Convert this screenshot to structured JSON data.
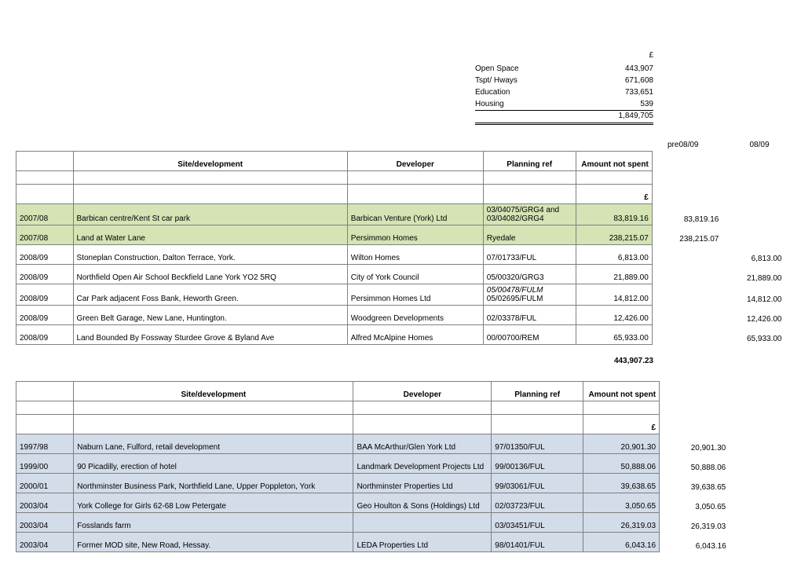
{
  "summary": {
    "currency": "£",
    "rows": [
      {
        "label": "Open Space",
        "value": "443,907"
      },
      {
        "label": "Tspt/ Hways",
        "value": "671,608"
      },
      {
        "label": "Education",
        "value": "733,651"
      },
      {
        "label": "Housing",
        "value": "539"
      }
    ],
    "total": "1,849,705"
  },
  "periodHeaders": {
    "a": "pre08/09",
    "b": "08/09"
  },
  "table1": {
    "headers": {
      "site": "Site/development",
      "dev": "Developer",
      "ref": "Planning ref",
      "amt": "Amount not spent",
      "cur": "£"
    },
    "rows": [
      {
        "year": "2007/08",
        "site": "Barbican centre/Kent St car park",
        "dev": "Barbican Venture (York) Ltd",
        "ref": "03/04075/GRG4 and 03/04082/GRG4",
        "amt": "83,819.16",
        "ext1": "83,819.16",
        "ext2": "",
        "cls": "row-green"
      },
      {
        "year": "2007/08",
        "site": "Land at Water Lane",
        "dev": "Persimmon Homes",
        "ref": "Ryedale",
        "amt": "238,215.07",
        "ext1": "238,215.07",
        "ext2": "",
        "cls": "row-green"
      },
      {
        "year": "2008/09",
        "site": "Stoneplan Construction, Dalton Terrace, York.",
        "dev": "Wilton Homes",
        "ref": "07/01733/FUL",
        "amt": "6,813.00",
        "ext1": "",
        "ext2": "6,813.00",
        "cls": ""
      },
      {
        "year": "2008/09",
        "site": "Northfield Open Air School Beckfield Lane York YO2 5RQ",
        "dev": "City of York Council",
        "ref": "05/00320/GRG3",
        "amt": "21,889.00",
        "ext1": "",
        "ext2": "21,889.00",
        "cls": ""
      },
      {
        "year": "2008/09",
        "site": "Car Park adjacent Foss Bank, Heworth Green.",
        "dev": "Persimmon Homes Ltd",
        "ref": "05/00478/FULM 05/02695/FULM",
        "amt": "14,812.00",
        "ext1": "",
        "ext2": "14,812.00",
        "cls": ""
      },
      {
        "year": "2008/09",
        "site": "Green Belt Garage, New Lane, Huntington.",
        "dev": "Woodgreen Developments",
        "ref": "02/03378/FUL",
        "amt": "12,426.00",
        "ext1": "",
        "ext2": "12,426.00",
        "cls": ""
      },
      {
        "year": "2008/09",
        "site": "Land Bounded By Fossway Sturdee Grove & Byland Ave",
        "dev": "Alfred McAlpine Homes",
        "ref": "00/00700/REM",
        "amt": "65,933.00",
        "ext1": "",
        "ext2": "65,933.00",
        "cls": ""
      }
    ],
    "subtotal": "443,907.23"
  },
  "table2": {
    "headers": {
      "site": "Site/development",
      "dev": "Developer",
      "ref": "Planning ref",
      "amt": "Amount not spent",
      "cur": "£"
    },
    "rows": [
      {
        "year": "1997/98",
        "site": "Naburn Lane, Fulford, retail development",
        "dev": "BAA McArthur/Glen York Ltd",
        "ref": "97/01350/FUL",
        "amt": "20,901.30",
        "ext1": "20,901.30",
        "ext2": "",
        "cls": "row-blue"
      },
      {
        "year": "1999/00",
        "site": "90 Picadilly, erection of hotel",
        "dev": "Landmark Development Projects Ltd",
        "ref": "99/00136/FUL",
        "amt": "50,888.06",
        "ext1": "50,888.06",
        "ext2": "",
        "cls": "row-blue"
      },
      {
        "year": "2000/01",
        "site": "Northminster Business Park, Northfield Lane, Upper Poppleton, York",
        "dev": "Northminster Properties Ltd",
        "ref": "99/03061/FUL",
        "amt": "39,638.65",
        "ext1": "39,638.65",
        "ext2": "",
        "cls": "row-blue"
      },
      {
        "year": "2003/04",
        "site": "York College for Girls 62-68 Low Petergate",
        "dev": "Geo Houlton & Sons (Holdings) Ltd",
        "ref": "02/03723/FUL",
        "amt": "3,050.65",
        "ext1": "3,050.65",
        "ext2": "",
        "cls": "row-blue"
      },
      {
        "year": "2003/04",
        "site": "Fosslands farm",
        "dev": "",
        "ref": "03/03451/FUL",
        "amt": "26,319.03",
        "ext1": "26,319.03",
        "ext2": "",
        "cls": "row-blue"
      },
      {
        "year": "2003/04",
        "site": "Former MOD site, New Road, Hessay.",
        "dev": "LEDA Properties Ltd",
        "ref": "98/01401/FUL",
        "amt": "6,043.16",
        "ext1": "6,043.16",
        "ext2": "",
        "cls": "row-blue"
      }
    ]
  },
  "style": {
    "green": "#d5e3b5",
    "blue": "#d3dce9",
    "border": "#808080",
    "font": "Arial",
    "fontsize": 10
  }
}
